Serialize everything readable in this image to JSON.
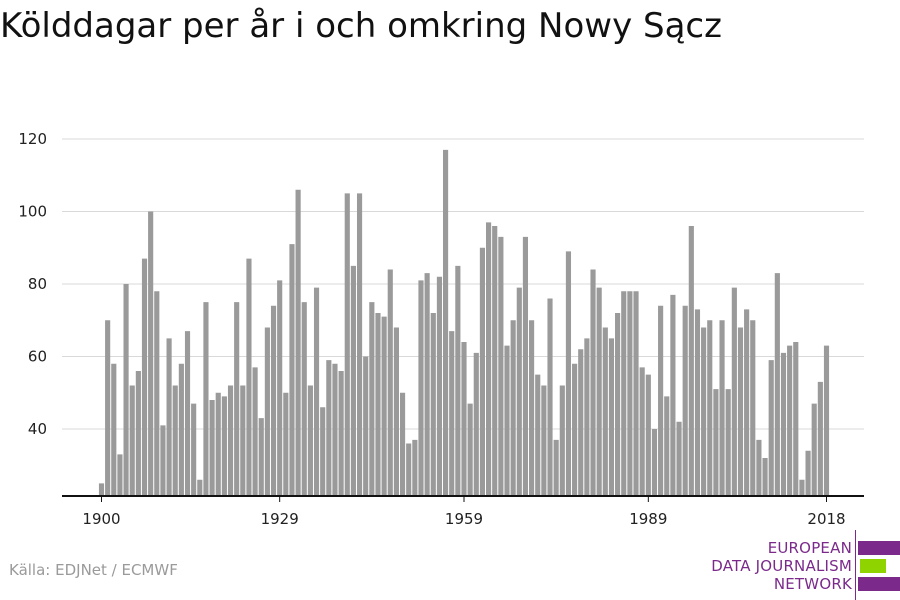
{
  "title": "Kölddagar per år i och omkring Nowy Sącz",
  "source": "Källa: EDJNet / ECMWF",
  "logo": {
    "line1": "EUROPEAN",
    "line2": "DATA JOURNALISM",
    "line3": "NETWORK",
    "color_primary": "#7b2a8c",
    "color_accent": "#8fd400"
  },
  "colors": {
    "bar": "#9a9a9a",
    "grid": "#d9d9d9",
    "axis": "#111111",
    "text": "#222222"
  },
  "chart_data": {
    "type": "bar",
    "title": "Kölddagar per år i och omkring Nowy Sącz",
    "xlabel": "",
    "ylabel": "",
    "x_tick_labels": [
      "1900",
      "1929",
      "1959",
      "1989",
      "2018"
    ],
    "y_ticks": [
      40,
      60,
      80,
      100,
      120
    ],
    "ylim": [
      21,
      120
    ],
    "grid": true,
    "x": [
      1900,
      1901,
      1902,
      1903,
      1904,
      1905,
      1906,
      1907,
      1908,
      1909,
      1910,
      1911,
      1912,
      1913,
      1914,
      1915,
      1916,
      1917,
      1918,
      1919,
      1920,
      1921,
      1922,
      1923,
      1924,
      1925,
      1926,
      1927,
      1928,
      1929,
      1930,
      1931,
      1932,
      1933,
      1934,
      1935,
      1936,
      1937,
      1938,
      1939,
      1940,
      1941,
      1942,
      1943,
      1944,
      1945,
      1946,
      1947,
      1948,
      1949,
      1950,
      1951,
      1952,
      1953,
      1954,
      1955,
      1956,
      1957,
      1958,
      1959,
      1960,
      1961,
      1962,
      1963,
      1964,
      1965,
      1966,
      1967,
      1968,
      1969,
      1970,
      1971,
      1972,
      1973,
      1974,
      1975,
      1976,
      1977,
      1978,
      1979,
      1980,
      1981,
      1982,
      1983,
      1984,
      1985,
      1986,
      1987,
      1988,
      1989,
      1990,
      1991,
      1992,
      1993,
      1994,
      1995,
      1996,
      1997,
      1998,
      1999,
      2000,
      2001,
      2002,
      2003,
      2004,
      2005,
      2006,
      2007,
      2008,
      2009,
      2010,
      2011,
      2012,
      2013,
      2014,
      2015,
      2016,
      2017,
      2018
    ],
    "values": [
      25,
      70,
      58,
      33,
      80,
      52,
      56,
      87,
      100,
      78,
      41,
      65,
      52,
      58,
      67,
      47,
      26,
      75,
      48,
      50,
      49,
      52,
      75,
      52,
      87,
      57,
      43,
      68,
      74,
      81,
      50,
      91,
      106,
      75,
      52,
      79,
      46,
      59,
      58,
      56,
      105,
      85,
      105,
      60,
      75,
      72,
      71,
      84,
      68,
      50,
      36,
      37,
      81,
      83,
      72,
      82,
      117,
      67,
      85,
      64,
      47,
      61,
      90,
      97,
      96,
      93,
      63,
      70,
      79,
      93,
      70,
      55,
      52,
      76,
      37,
      52,
      89,
      58,
      62,
      65,
      84,
      79,
      68,
      65,
      72,
      78,
      78,
      78,
      57,
      55,
      40,
      74,
      49,
      77,
      42,
      74,
      96,
      73,
      68,
      70,
      51,
      70,
      51,
      79,
      68,
      73,
      70,
      37,
      32,
      59,
      83,
      61,
      63,
      64,
      26,
      34,
      47,
      53,
      63
    ]
  }
}
